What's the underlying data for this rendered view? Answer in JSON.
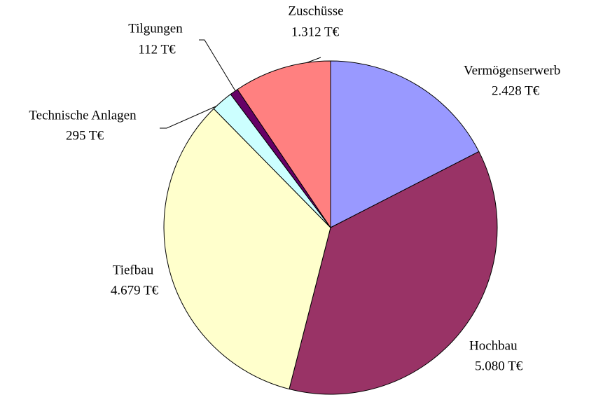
{
  "chart_data": {
    "type": "pie",
    "categories": [
      "Vermögenserwerb",
      "Hochbau",
      "Tiefbau",
      "Technische Anlagen",
      "Tilgungen",
      "Zuschüsse"
    ],
    "values": [
      2428,
      5080,
      4679,
      295,
      112,
      1312
    ],
    "value_labels": [
      "2.428 T€",
      "5.080 T€",
      "4.679 T€",
      "295 T€",
      "112 T€",
      "1.312 T€"
    ],
    "colors": [
      "#9999ff",
      "#993366",
      "#ffffcc",
      "#ccffff",
      "#660066",
      "#ff8080"
    ]
  }
}
